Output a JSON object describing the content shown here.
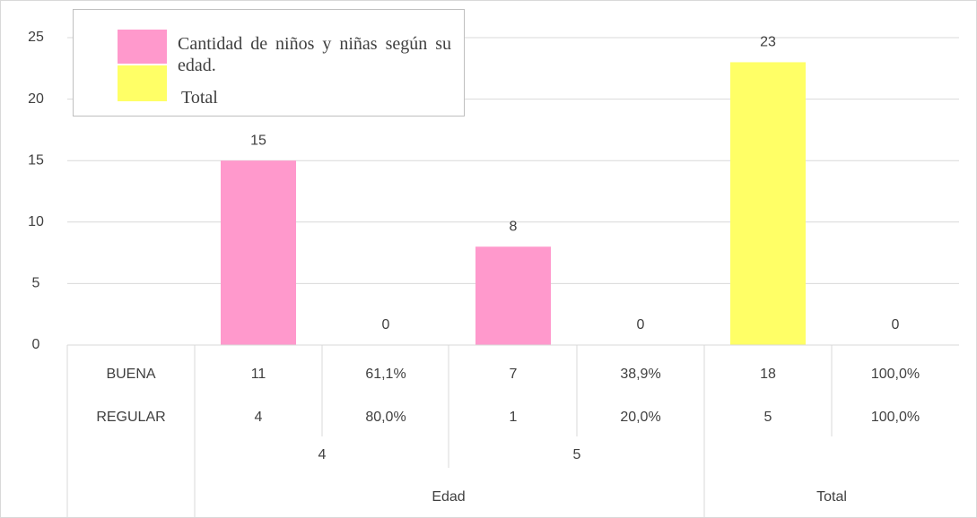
{
  "chart_data": {
    "type": "bar",
    "series": [
      {
        "name": "Cantidad de niños y niñas según su edad.",
        "color": "#ff99cc",
        "values": [
          15,
          0,
          8,
          0,
          null,
          null
        ]
      },
      {
        "name": "Total",
        "color": "#ffff66",
        "values": [
          null,
          null,
          null,
          null,
          23,
          0
        ]
      }
    ],
    "ylim": [
      0,
      25
    ],
    "yticks": [
      0,
      5,
      10,
      15,
      20,
      25
    ],
    "grid": true,
    "legend": "top-left",
    "table": {
      "rows": [
        {
          "label": "BUENA",
          "values": [
            "11",
            "61,1%",
            "7",
            "38,9%",
            "18",
            "100,0%"
          ]
        },
        {
          "label": "REGULAR",
          "values": [
            "4",
            "80,0%",
            "1",
            "20,0%",
            "5",
            "100,0%"
          ]
        }
      ],
      "subgroups": [
        "4",
        "5"
      ],
      "groups": [
        "Edad",
        "Total"
      ]
    }
  }
}
